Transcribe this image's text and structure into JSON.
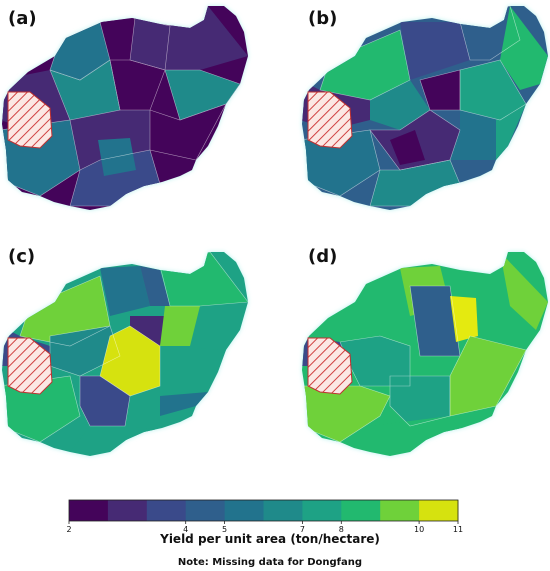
{
  "panels": [
    {
      "label": "(a)"
    },
    {
      "label": "(b)"
    },
    {
      "label": "(c)"
    },
    {
      "label": "(d)"
    }
  ],
  "colorbar": {
    "bins": [
      {
        "color": "#44045a"
      },
      {
        "color": "#462a74"
      },
      {
        "color": "#3a4a8a"
      },
      {
        "color": "#2f5f8c"
      },
      {
        "color": "#22738d"
      },
      {
        "color": "#1f8a8a"
      },
      {
        "color": "#1ea285"
      },
      {
        "color": "#22b96f"
      },
      {
        "color": "#6fd13a"
      },
      {
        "color": "#d6e20f"
      }
    ],
    "ticks": [
      "2",
      "4",
      "5",
      "7",
      "8",
      "10",
      "11"
    ],
    "label": "Yield per unit area (ton/hectare)"
  },
  "note": "Note: Missing data for Dongfang",
  "colors": {
    "missing_hatch": "#d04040",
    "coast_glow": "#b8f2ee"
  }
}
